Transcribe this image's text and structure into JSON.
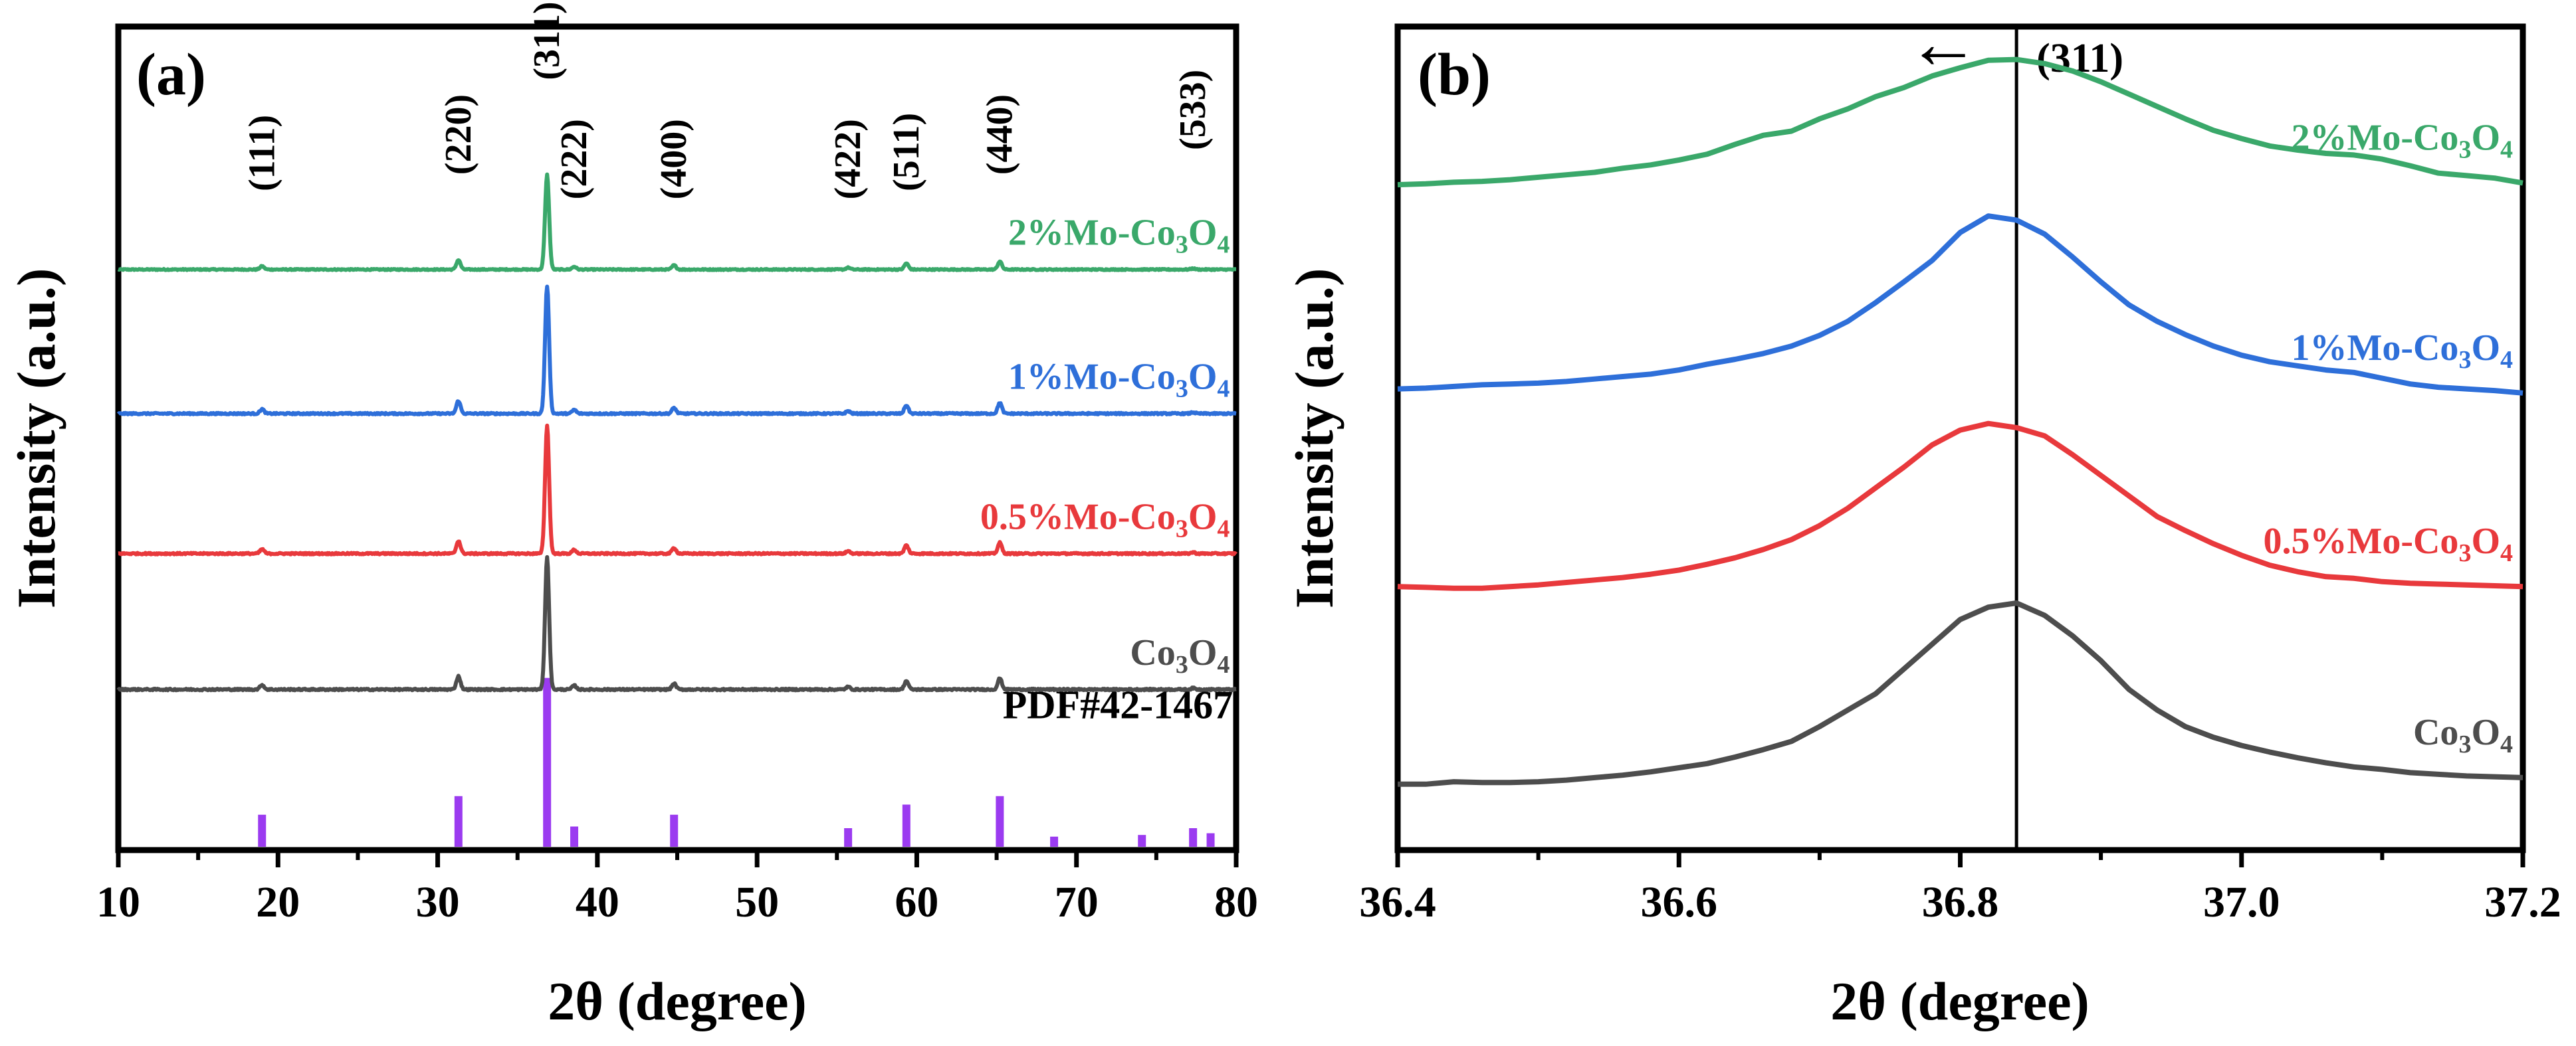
{
  "colors": {
    "co3o4": "#4d4d4d",
    "mo05": "#e8393c",
    "mo1": "#2e6fd9",
    "mo2": "#3aa86a",
    "pdf": "#9b3bf0",
    "axis": "#000000"
  },
  "chart_data": [
    {
      "id": "a",
      "panel_label": "(a)",
      "type": "line",
      "xlabel": "2θ (degree)",
      "ylabel": "Intensity (a.u.)",
      "xlim": [
        10,
        80
      ],
      "ylim": [
        0,
        1
      ],
      "xticks": [
        10,
        20,
        30,
        40,
        50,
        60,
        70,
        80
      ],
      "xtick_labels": [
        "10",
        "20",
        "30",
        "40",
        "50",
        "60",
        "70",
        "80"
      ],
      "peaks": [
        {
          "x": 19.0,
          "r": 0.035
        },
        {
          "x": 31.3,
          "r": 0.1
        },
        {
          "x": 36.85,
          "r": 1.0
        },
        {
          "x": 38.55,
          "r": 0.03
        },
        {
          "x": 44.8,
          "r": 0.045
        },
        {
          "x": 55.7,
          "r": 0.02
        },
        {
          "x": 59.35,
          "r": 0.065
        },
        {
          "x": 65.2,
          "r": 0.085
        },
        {
          "x": 77.3,
          "r": 0.01
        }
      ],
      "series": [
        {
          "key": "mo2",
          "name_base": "2%Mo-Co",
          "sub1": "3",
          "mid": "O",
          "sub2": "4",
          "baseline": 0.705,
          "scale": 0.115
        },
        {
          "key": "mo1",
          "name_base": "1%Mo-Co",
          "sub1": "3",
          "mid": "O",
          "sub2": "4",
          "baseline": 0.53,
          "scale": 0.155
        },
        {
          "key": "mo05",
          "name_base": "0.5%Mo-Co",
          "sub1": "3",
          "mid": "O",
          "sub2": "4",
          "baseline": 0.36,
          "scale": 0.155
        },
        {
          "key": "co3o4",
          "name_base": "Co",
          "sub1": "3",
          "mid": "O",
          "sub2": "4",
          "baseline": 0.195,
          "scale": 0.16
        }
      ],
      "reference": {
        "label": "PDF#42-1467",
        "bars": [
          {
            "x": 19.0,
            "h": 0.19
          },
          {
            "x": 31.3,
            "h": 0.3
          },
          {
            "x": 36.85,
            "h": 1.0
          },
          {
            "x": 38.55,
            "h": 0.12
          },
          {
            "x": 44.8,
            "h": 0.19
          },
          {
            "x": 55.7,
            "h": 0.11
          },
          {
            "x": 59.35,
            "h": 0.25
          },
          {
            "x": 65.2,
            "h": 0.3
          },
          {
            "x": 68.6,
            "h": 0.06
          },
          {
            "x": 74.1,
            "h": 0.07
          },
          {
            "x": 77.3,
            "h": 0.11
          },
          {
            "x": 78.4,
            "h": 0.08
          }
        ]
      },
      "hkl_labels": [
        {
          "text": "(111)",
          "x": 19.0,
          "y": 0.8
        },
        {
          "text": "(220)",
          "x": 31.3,
          "y": 0.82
        },
        {
          "text": "(311)",
          "x": 36.85,
          "y": 0.935
        },
        {
          "text": "(222)",
          "x": 38.55,
          "y": 0.79
        },
        {
          "text": "(400)",
          "x": 44.8,
          "y": 0.79
        },
        {
          "text": "(422)",
          "x": 55.7,
          "y": 0.79
        },
        {
          "text": "(511)",
          "x": 59.35,
          "y": 0.8
        },
        {
          "text": "(440)",
          "x": 65.2,
          "y": 0.82
        },
        {
          "text": "(533)",
          "x": 77.3,
          "y": 0.85
        }
      ]
    },
    {
      "id": "b",
      "panel_label": "(b)",
      "type": "line",
      "xlabel": "2θ (degree)",
      "ylabel": "Intensity (a.u.)",
      "xlim": [
        36.4,
        37.2
      ],
      "ylim": [
        0,
        1
      ],
      "xticks": [
        36.4,
        36.6,
        36.8,
        37.0,
        37.2
      ],
      "xtick_labels": [
        "36.4",
        "36.6",
        "36.8",
        "37.0",
        "37.2"
      ],
      "minor_step": 0.1,
      "reference_line_x": 36.84,
      "annotation": {
        "text": "(311)",
        "arrow": "←"
      },
      "series": [
        {
          "key": "mo2",
          "name_base": "2%Mo-Co",
          "sub1": "3",
          "mid": "O",
          "sub2": "4",
          "x": [
            36.4,
            36.42,
            36.44,
            36.46,
            36.48,
            36.5,
            36.52,
            36.54,
            36.56,
            36.58,
            36.6,
            36.62,
            36.64,
            36.66,
            36.68,
            36.7,
            36.72,
            36.74,
            36.76,
            36.78,
            36.8,
            36.82,
            36.84,
            36.86,
            36.88,
            36.9,
            36.92,
            36.94,
            36.96,
            36.98,
            37.0,
            37.02,
            37.04,
            37.06,
            37.08,
            37.1,
            37.12,
            37.14,
            37.16,
            37.18,
            37.2
          ],
          "y": [
            0.808,
            0.809,
            0.811,
            0.812,
            0.814,
            0.817,
            0.82,
            0.823,
            0.828,
            0.832,
            0.838,
            0.845,
            0.857,
            0.868,
            0.873,
            0.888,
            0.9,
            0.915,
            0.926,
            0.94,
            0.95,
            0.959,
            0.96,
            0.955,
            0.946,
            0.933,
            0.918,
            0.903,
            0.888,
            0.874,
            0.864,
            0.855,
            0.85,
            0.846,
            0.844,
            0.839,
            0.831,
            0.822,
            0.819,
            0.816,
            0.81
          ]
        },
        {
          "key": "mo1",
          "name_base": "1%Mo-Co",
          "sub1": "3",
          "mid": "O",
          "sub2": "4",
          "x": [
            36.4,
            36.42,
            36.44,
            36.46,
            36.48,
            36.5,
            36.52,
            36.54,
            36.56,
            36.58,
            36.6,
            36.62,
            36.64,
            36.66,
            36.68,
            36.7,
            36.72,
            36.74,
            36.76,
            36.78,
            36.8,
            36.82,
            36.84,
            36.86,
            36.88,
            36.9,
            36.92,
            36.94,
            36.96,
            36.98,
            37.0,
            37.02,
            37.04,
            37.06,
            37.08,
            37.1,
            37.12,
            37.14,
            37.16,
            37.18,
            37.2
          ],
          "y": [
            0.56,
            0.561,
            0.563,
            0.565,
            0.566,
            0.567,
            0.569,
            0.572,
            0.575,
            0.578,
            0.583,
            0.59,
            0.596,
            0.603,
            0.612,
            0.625,
            0.642,
            0.665,
            0.69,
            0.716,
            0.75,
            0.77,
            0.765,
            0.748,
            0.72,
            0.69,
            0.662,
            0.642,
            0.626,
            0.612,
            0.601,
            0.593,
            0.588,
            0.583,
            0.58,
            0.573,
            0.566,
            0.562,
            0.56,
            0.558,
            0.555
          ]
        },
        {
          "key": "mo05",
          "name_base": "0.5%Mo-Co",
          "sub1": "3",
          "mid": "O",
          "sub2": "4",
          "x": [
            36.4,
            36.42,
            36.44,
            36.46,
            36.48,
            36.5,
            36.52,
            36.54,
            36.56,
            36.58,
            36.6,
            36.62,
            36.64,
            36.66,
            36.68,
            36.7,
            36.72,
            36.74,
            36.76,
            36.78,
            36.8,
            36.82,
            36.84,
            36.86,
            36.88,
            36.9,
            36.92,
            36.94,
            36.96,
            36.98,
            37.0,
            37.02,
            37.04,
            37.06,
            37.08,
            37.1,
            37.12,
            37.14,
            37.16,
            37.18,
            37.2
          ],
          "y": [
            0.32,
            0.319,
            0.318,
            0.318,
            0.32,
            0.322,
            0.325,
            0.328,
            0.331,
            0.335,
            0.34,
            0.347,
            0.355,
            0.365,
            0.377,
            0.394,
            0.415,
            0.44,
            0.465,
            0.492,
            0.51,
            0.518,
            0.513,
            0.503,
            0.48,
            0.455,
            0.43,
            0.405,
            0.388,
            0.372,
            0.358,
            0.346,
            0.338,
            0.332,
            0.33,
            0.326,
            0.324,
            0.323,
            0.322,
            0.321,
            0.32
          ]
        },
        {
          "key": "co3o4",
          "name_base": "Co",
          "sub1": "3",
          "mid": "O",
          "sub2": "4",
          "x": [
            36.4,
            36.42,
            36.44,
            36.46,
            36.48,
            36.5,
            36.52,
            36.54,
            36.56,
            36.58,
            36.6,
            36.62,
            36.64,
            36.66,
            36.68,
            36.7,
            36.72,
            36.74,
            36.76,
            36.78,
            36.8,
            36.82,
            36.84,
            36.86,
            36.88,
            36.9,
            36.92,
            36.94,
            36.96,
            36.98,
            37.0,
            37.02,
            37.04,
            37.06,
            37.08,
            37.1,
            37.12,
            37.14,
            37.16,
            37.18,
            37.2
          ],
          "y": [
            0.08,
            0.08,
            0.083,
            0.082,
            0.082,
            0.083,
            0.085,
            0.088,
            0.091,
            0.095,
            0.1,
            0.105,
            0.113,
            0.122,
            0.132,
            0.15,
            0.17,
            0.19,
            0.22,
            0.25,
            0.28,
            0.295,
            0.3,
            0.285,
            0.26,
            0.23,
            0.195,
            0.17,
            0.15,
            0.137,
            0.127,
            0.119,
            0.112,
            0.106,
            0.101,
            0.098,
            0.094,
            0.092,
            0.09,
            0.089,
            0.088
          ]
        }
      ]
    }
  ]
}
